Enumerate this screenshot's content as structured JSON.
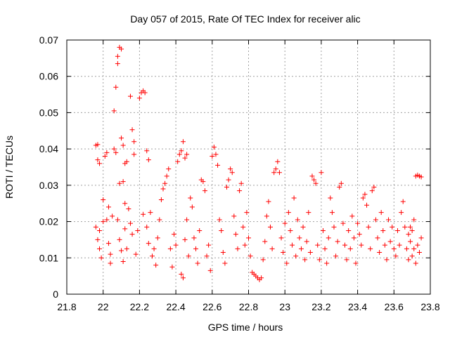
{
  "chart_data": {
    "type": "scatter",
    "title": "Day 057 of 2015, Rate Of TEC Index for receiver alic",
    "xlabel": "GPS time / hours",
    "ylabel": "ROTI / TECUs",
    "xlim": [
      21.8,
      23.8
    ],
    "ylim": [
      0,
      0.07
    ],
    "xticks": [
      21.8,
      22.0,
      22.2,
      22.4,
      22.6,
      22.8,
      23.0,
      23.2,
      23.4,
      23.6,
      23.8
    ],
    "xtick_labels": [
      "21.8",
      "22",
      "22.2",
      "22.4",
      "22.6",
      "22.8",
      "23",
      "23.2",
      "23.4",
      "23.6",
      "23.8"
    ],
    "yticks": [
      0,
      0.01,
      0.02,
      0.03,
      0.04,
      0.05,
      0.06,
      0.07
    ],
    "ytick_labels": [
      "0",
      "0.01",
      "0.02",
      "0.03",
      "0.04",
      "0.05",
      "0.06",
      "0.07"
    ],
    "grid": true,
    "marker": "+",
    "color": "#ff0000",
    "series": [
      {
        "name": "ROTI",
        "points": [
          [
            21.96,
            0.041
          ],
          [
            21.97,
            0.0412
          ],
          [
            21.97,
            0.037
          ],
          [
            21.98,
            0.036
          ],
          [
            21.96,
            0.0185
          ],
          [
            21.97,
            0.015
          ],
          [
            21.98,
            0.0125
          ],
          [
            21.99,
            0.01
          ],
          [
            21.98,
            0.0175
          ],
          [
            22.0,
            0.02
          ],
          [
            22.0,
            0.026
          ],
          [
            22.01,
            0.038
          ],
          [
            22.02,
            0.039
          ],
          [
            22.02,
            0.0205
          ],
          [
            22.03,
            0.024
          ],
          [
            22.03,
            0.014
          ],
          [
            22.04,
            0.011
          ],
          [
            22.04,
            0.0085
          ],
          [
            22.05,
            0.0215
          ],
          [
            22.06,
            0.04
          ],
          [
            22.06,
            0.0505
          ],
          [
            22.07,
            0.057
          ],
          [
            22.07,
            0.039
          ],
          [
            22.08,
            0.0635
          ],
          [
            22.08,
            0.0655
          ],
          [
            22.09,
            0.068
          ],
          [
            22.1,
            0.0675
          ],
          [
            22.1,
            0.043
          ],
          [
            22.11,
            0.041
          ],
          [
            22.12,
            0.036
          ],
          [
            22.09,
            0.0305
          ],
          [
            22.11,
            0.031
          ],
          [
            22.12,
            0.025
          ],
          [
            22.13,
            0.0365
          ],
          [
            22.08,
            0.0205
          ],
          [
            22.09,
            0.015
          ],
          [
            22.1,
            0.012
          ],
          [
            22.11,
            0.009
          ],
          [
            22.12,
            0.018
          ],
          [
            22.13,
            0.0125
          ],
          [
            22.15,
            0.0545
          ],
          [
            22.16,
            0.0453
          ],
          [
            22.17,
            0.042
          ],
          [
            22.17,
            0.0385
          ],
          [
            22.14,
            0.0235
          ],
          [
            22.15,
            0.0195
          ],
          [
            22.16,
            0.0165
          ],
          [
            22.18,
            0.011
          ],
          [
            22.19,
            0.0175
          ],
          [
            22.2,
            0.054
          ],
          [
            22.21,
            0.0555
          ],
          [
            22.22,
            0.056
          ],
          [
            22.23,
            0.0555
          ],
          [
            22.24,
            0.0395
          ],
          [
            22.25,
            0.037
          ],
          [
            22.22,
            0.022
          ],
          [
            22.24,
            0.0185
          ],
          [
            22.25,
            0.014
          ],
          [
            22.26,
            0.0225
          ],
          [
            22.27,
            0.0105
          ],
          [
            22.28,
            0.0125
          ],
          [
            22.29,
            0.008
          ],
          [
            22.3,
            0.0155
          ],
          [
            22.31,
            0.0205
          ],
          [
            22.32,
            0.026
          ],
          [
            22.33,
            0.029
          ],
          [
            22.34,
            0.0305
          ],
          [
            22.35,
            0.0325
          ],
          [
            22.36,
            0.0345
          ],
          [
            22.37,
            0.0125
          ],
          [
            22.38,
            0.0075
          ],
          [
            22.39,
            0.0165
          ],
          [
            22.4,
            0.0135
          ],
          [
            22.41,
            0.0365
          ],
          [
            22.42,
            0.0385
          ],
          [
            22.43,
            0.0395
          ],
          [
            22.44,
            0.042
          ],
          [
            22.45,
            0.0375
          ],
          [
            22.46,
            0.0385
          ],
          [
            22.47,
            0.0105
          ],
          [
            22.43,
            0.0055
          ],
          [
            22.44,
            0.0045
          ],
          [
            22.45,
            0.015
          ],
          [
            22.46,
            0.0205
          ],
          [
            22.48,
            0.0265
          ],
          [
            22.49,
            0.024
          ],
          [
            22.5,
            0.0155
          ],
          [
            22.51,
            0.0125
          ],
          [
            22.52,
            0.0085
          ],
          [
            22.53,
            0.0175
          ],
          [
            22.54,
            0.0315
          ],
          [
            22.55,
            0.031
          ],
          [
            22.56,
            0.0285
          ],
          [
            22.57,
            0.0105
          ],
          [
            22.58,
            0.0135
          ],
          [
            22.59,
            0.0065
          ],
          [
            22.6,
            0.038
          ],
          [
            22.61,
            0.0405
          ],
          [
            22.62,
            0.0385
          ],
          [
            22.63,
            0.0355
          ],
          [
            22.64,
            0.0205
          ],
          [
            22.65,
            0.0175
          ],
          [
            22.66,
            0.0115
          ],
          [
            22.67,
            0.0085
          ],
          [
            22.68,
            0.0295
          ],
          [
            22.69,
            0.0315
          ],
          [
            22.7,
            0.0345
          ],
          [
            22.71,
            0.0335
          ],
          [
            22.72,
            0.0215
          ],
          [
            22.73,
            0.0165
          ],
          [
            22.74,
            0.0125
          ],
          [
            22.75,
            0.0285
          ],
          [
            22.76,
            0.0305
          ],
          [
            22.77,
            0.0185
          ],
          [
            22.78,
            0.0135
          ],
          [
            22.79,
            0.0225
          ],
          [
            22.8,
            0.0155
          ],
          [
            22.81,
            0.0105
          ],
          [
            22.82,
            0.006
          ],
          [
            22.83,
            0.0055
          ],
          [
            22.84,
            0.005
          ],
          [
            22.85,
            0.0045
          ],
          [
            22.86,
            0.004
          ],
          [
            22.87,
            0.0045
          ],
          [
            22.88,
            0.0095
          ],
          [
            22.89,
            0.0145
          ],
          [
            22.9,
            0.0215
          ],
          [
            22.91,
            0.0255
          ],
          [
            22.92,
            0.0185
          ],
          [
            22.93,
            0.0125
          ],
          [
            22.94,
            0.0335
          ],
          [
            22.95,
            0.0345
          ],
          [
            22.96,
            0.0365
          ],
          [
            22.97,
            0.0335
          ],
          [
            22.98,
            0.0155
          ],
          [
            22.99,
            0.0115
          ],
          [
            23.0,
            0.0195
          ],
          [
            23.01,
            0.0085
          ],
          [
            23.02,
            0.0225
          ],
          [
            23.03,
            0.0175
          ],
          [
            23.04,
            0.0135
          ],
          [
            23.05,
            0.0265
          ],
          [
            23.06,
            0.0105
          ],
          [
            23.07,
            0.0205
          ],
          [
            23.08,
            0.0155
          ],
          [
            23.09,
            0.0125
          ],
          [
            23.1,
            0.0185
          ],
          [
            23.11,
            0.0095
          ],
          [
            23.12,
            0.0145
          ],
          [
            23.13,
            0.0225
          ],
          [
            23.14,
            0.0115
          ],
          [
            23.15,
            0.0325
          ],
          [
            23.16,
            0.0315
          ],
          [
            23.17,
            0.0305
          ],
          [
            23.18,
            0.0135
          ],
          [
            23.19,
            0.0095
          ],
          [
            23.2,
            0.0335
          ],
          [
            23.21,
            0.0175
          ],
          [
            23.22,
            0.0125
          ],
          [
            23.23,
            0.0085
          ],
          [
            23.24,
            0.0155
          ],
          [
            23.25,
            0.0265
          ],
          [
            23.26,
            0.0225
          ],
          [
            23.27,
            0.0185
          ],
          [
            23.28,
            0.0105
          ],
          [
            23.29,
            0.0145
          ],
          [
            23.3,
            0.0295
          ],
          [
            23.31,
            0.0305
          ],
          [
            23.32,
            0.0195
          ],
          [
            23.33,
            0.0135
          ],
          [
            23.34,
            0.0095
          ],
          [
            23.35,
            0.0175
          ],
          [
            23.36,
            0.0125
          ],
          [
            23.37,
            0.0215
          ],
          [
            23.38,
            0.0155
          ],
          [
            23.39,
            0.0085
          ],
          [
            23.4,
            0.0195
          ],
          [
            23.41,
            0.0165
          ],
          [
            23.42,
            0.0135
          ],
          [
            23.43,
            0.0265
          ],
          [
            23.44,
            0.0275
          ],
          [
            23.45,
            0.0245
          ],
          [
            23.46,
            0.0185
          ],
          [
            23.47,
            0.0125
          ],
          [
            23.48,
            0.0285
          ],
          [
            23.49,
            0.0295
          ],
          [
            23.5,
            0.0205
          ],
          [
            23.51,
            0.0155
          ],
          [
            23.52,
            0.0115
          ],
          [
            23.53,
            0.0225
          ],
          [
            23.54,
            0.0175
          ],
          [
            23.55,
            0.0135
          ],
          [
            23.56,
            0.0095
          ],
          [
            23.57,
            0.0205
          ],
          [
            23.58,
            0.0145
          ],
          [
            23.59,
            0.0185
          ],
          [
            23.6,
            0.0125
          ],
          [
            23.61,
            0.0105
          ],
          [
            23.62,
            0.0175
          ],
          [
            23.63,
            0.0135
          ],
          [
            23.64,
            0.0225
          ],
          [
            23.65,
            0.0255
          ],
          [
            23.66,
            0.0185
          ],
          [
            23.67,
            0.0125
          ],
          [
            23.68,
            0.0095
          ],
          [
            23.69,
            0.0145
          ],
          [
            23.7,
            0.0175
          ],
          [
            23.71,
            0.0205
          ],
          [
            23.72,
            0.0325
          ],
          [
            23.73,
            0.0328
          ],
          [
            23.74,
            0.0325
          ],
          [
            23.75,
            0.0323
          ],
          [
            23.73,
            0.0135
          ],
          [
            23.74,
            0.0115
          ],
          [
            23.75,
            0.0155
          ],
          [
            23.72,
            0.0085
          ],
          [
            23.71,
            0.0125
          ],
          [
            23.7,
            0.0105
          ],
          [
            23.69,
            0.0185
          ],
          [
            23.68,
            0.0165
          ]
        ]
      }
    ]
  }
}
